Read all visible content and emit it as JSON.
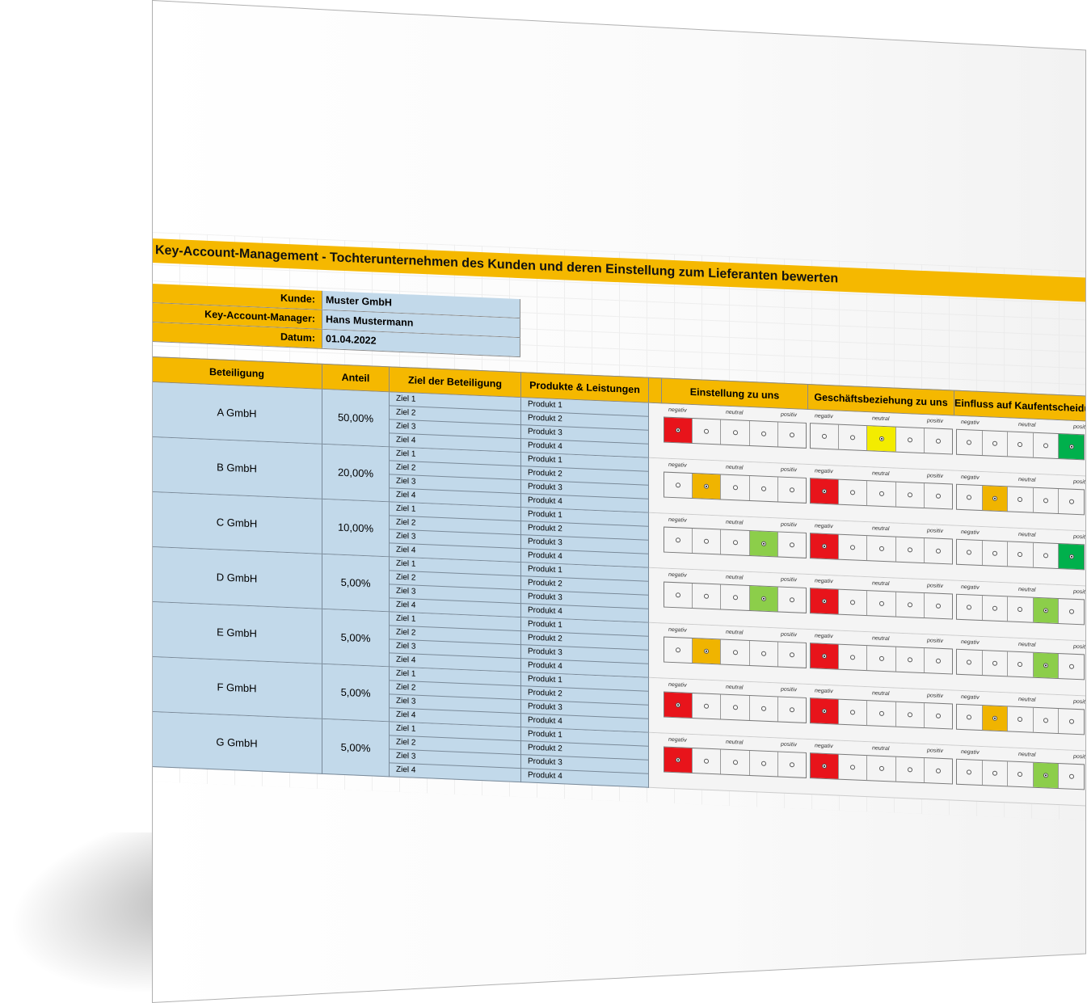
{
  "title": "Key-Account-Management - Tochterunternehmen des Kunden und deren Einstellung zum Lieferanten bewerten",
  "info": [
    {
      "label": "Kunde:",
      "value": "Muster GmbH"
    },
    {
      "label": "Key-Account-Manager:",
      "value": "Hans Mustermann"
    },
    {
      "label": "Datum:",
      "value": "01.04.2022"
    }
  ],
  "headers": {
    "beteiligung": "Beteiligung",
    "anteil": "Anteil",
    "ziel": "Ziel der Beteiligung",
    "produkte": "Produkte & Leistungen",
    "einstellung": "Einstellung zu uns",
    "geschaeft": "Geschäftsbeziehung zu uns",
    "einfluss": "Einfluss auf Kaufentscheidung"
  },
  "scale_labels": {
    "negativ": "negativ",
    "neutral": "neutral",
    "positiv": "positiv"
  },
  "colors": {
    "1": "#e8141b",
    "2": "#f0b400",
    "3": "#f3ec00",
    "4": "#8cce4a",
    "5": "#00b04c"
  },
  "rows": [
    {
      "name": "A GmbH",
      "share": "50,00%",
      "goals": [
        "Ziel 1",
        "Ziel 2",
        "Ziel 3",
        "Ziel 4"
      ],
      "products": [
        "Produkt 1",
        "Produkt 2",
        "Produkt 3",
        "Produkt 4"
      ],
      "ratings": [
        1,
        3,
        5
      ]
    },
    {
      "name": "B GmbH",
      "share": "20,00%",
      "goals": [
        "Ziel 1",
        "Ziel 2",
        "Ziel 3",
        "Ziel 4"
      ],
      "products": [
        "Produkt 1",
        "Produkt 2",
        "Produkt 3",
        "Produkt 4"
      ],
      "ratings": [
        2,
        1,
        2
      ]
    },
    {
      "name": "C GmbH",
      "share": "10,00%",
      "goals": [
        "Ziel 1",
        "Ziel 2",
        "Ziel 3",
        "Ziel 4"
      ],
      "products": [
        "Produkt 1",
        "Produkt 2",
        "Produkt 3",
        "Produkt 4"
      ],
      "ratings": [
        4,
        1,
        5
      ]
    },
    {
      "name": "D GmbH",
      "share": "5,00%",
      "goals": [
        "Ziel 1",
        "Ziel 2",
        "Ziel 3",
        "Ziel 4"
      ],
      "products": [
        "Produkt 1",
        "Produkt 2",
        "Produkt 3",
        "Produkt 4"
      ],
      "ratings": [
        4,
        1,
        4
      ]
    },
    {
      "name": "E GmbH",
      "share": "5,00%",
      "goals": [
        "Ziel 1",
        "Ziel 2",
        "Ziel 3",
        "Ziel 4"
      ],
      "products": [
        "Produkt 1",
        "Produkt 2",
        "Produkt 3",
        "Produkt 4"
      ],
      "ratings": [
        2,
        1,
        4
      ]
    },
    {
      "name": "F GmbH",
      "share": "5,00%",
      "goals": [
        "Ziel 1",
        "Ziel 2",
        "Ziel 3",
        "Ziel 4"
      ],
      "products": [
        "Produkt 1",
        "Produkt 2",
        "Produkt 3",
        "Produkt 4"
      ],
      "ratings": [
        1,
        1,
        2
      ]
    },
    {
      "name": "G GmbH",
      "share": "5,00%",
      "goals": [
        "Ziel 1",
        "Ziel 2",
        "Ziel 3",
        "Ziel 4"
      ],
      "products": [
        "Produkt 1",
        "Produkt 2",
        "Produkt 3",
        "Produkt 4"
      ],
      "ratings": [
        1,
        1,
        4
      ]
    }
  ]
}
